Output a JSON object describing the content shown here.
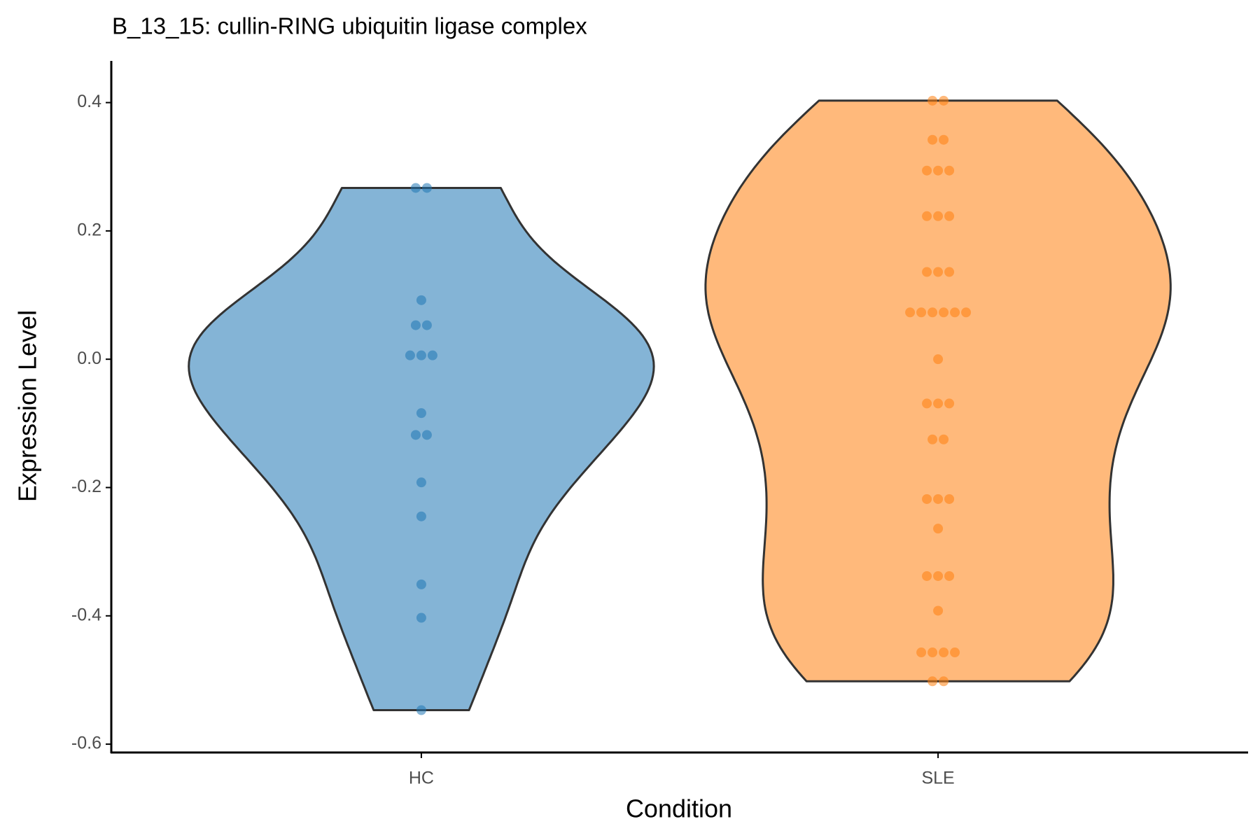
{
  "chart_data": {
    "type": "violin",
    "title": "B_13_15: cullin-RING ubiquitin ligase complex",
    "x_label": "Condition",
    "y_label": "Expression Level",
    "categories": [
      "HC",
      "SLE"
    ],
    "values": [
      [
        0.267,
        0.267,
        0.092,
        0.053,
        0.053,
        0.006,
        0.006,
        0.006,
        -0.084,
        -0.118,
        -0.118,
        -0.192,
        -0.245,
        -0.351,
        -0.403,
        -0.547
      ],
      [
        0.403,
        0.403,
        0.342,
        0.342,
        0.294,
        0.294,
        0.294,
        0.223,
        0.223,
        0.223,
        0.136,
        0.136,
        0.136,
        0.073,
        0.073,
        0.073,
        0.073,
        0.073,
        0.073,
        0.0,
        -0.069,
        -0.069,
        -0.069,
        -0.125,
        -0.125,
        -0.218,
        -0.218,
        -0.218,
        -0.264,
        -0.338,
        -0.338,
        -0.338,
        -0.392,
        -0.457,
        -0.457,
        -0.457,
        -0.457,
        -0.502,
        -0.502
      ]
    ],
    "colors": [
      "#1f77b4",
      "#ff7f0e"
    ],
    "ylim": [
      -0.613,
      0.465
    ],
    "yticks": [
      -0.6,
      -0.4,
      -0.2,
      {
        "value": 0,
        "label": "0.0"
      },
      0.2,
      0.4
    ]
  }
}
